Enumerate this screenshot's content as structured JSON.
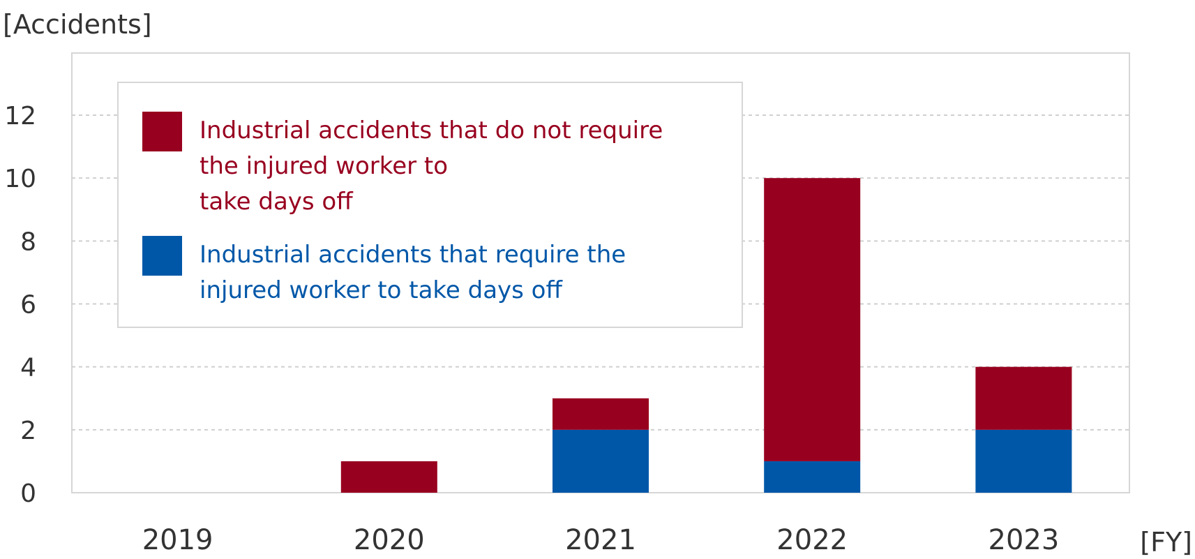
{
  "chart_data": {
    "type": "bar",
    "stacked": true,
    "ylabel": "[Accidents]",
    "xlabel": "[FY]",
    "ylim": [
      0,
      12
    ],
    "yticks": [
      0,
      2,
      4,
      6,
      8,
      10,
      12
    ],
    "grid": true,
    "legend_position": "top-left",
    "categories": [
      "2019",
      "2020",
      "2021",
      "2022",
      "2023"
    ],
    "series": [
      {
        "name": "Industrial accidents that require the injured worker to take days off",
        "legend_lines": [
          "Industrial accidents that require the",
          "injured worker to take days off"
        ],
        "color": "#0057a8",
        "values": [
          0,
          0,
          2,
          1,
          2
        ]
      },
      {
        "name": "Industrial accidents that do not require the injured worker to take days off",
        "legend_lines": [
          "Industrial accidents that do not require",
          "the injured worker to",
          "take days off"
        ],
        "color": "#98001f",
        "values": [
          0,
          1,
          1,
          9,
          2
        ]
      }
    ]
  }
}
